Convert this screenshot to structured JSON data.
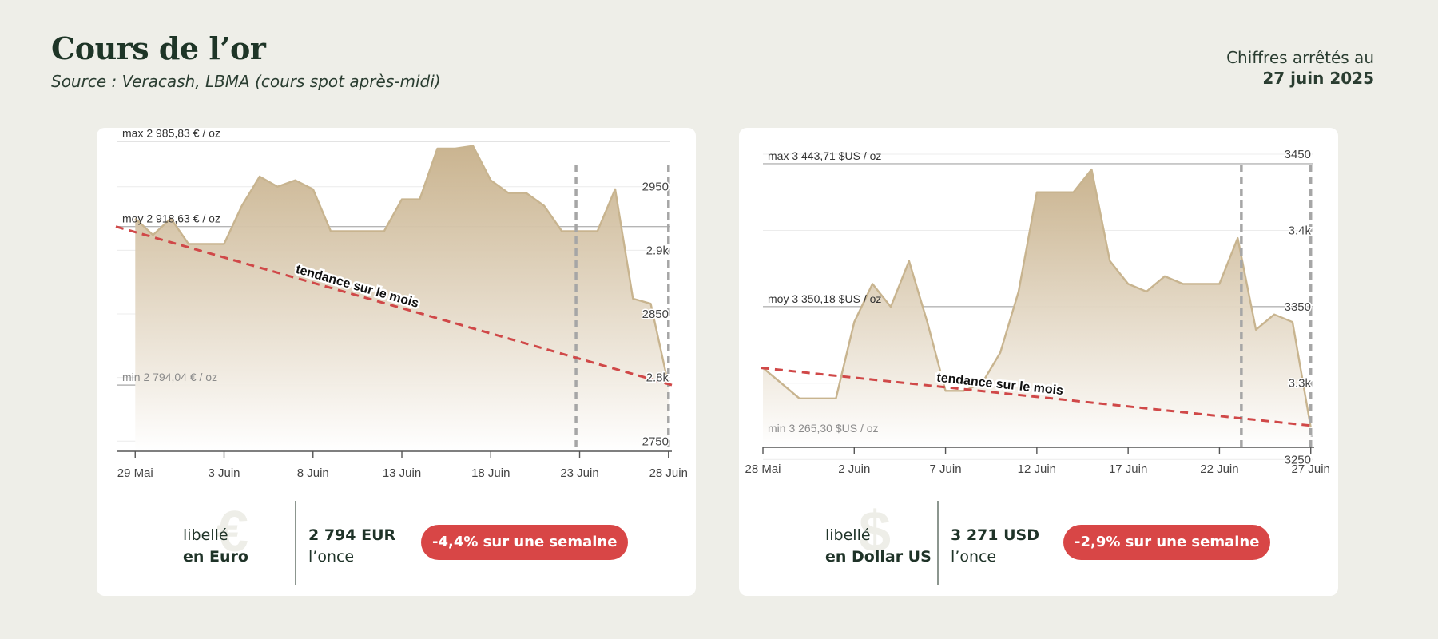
{
  "header": {
    "title": "Cours de l’or",
    "subtitle": "Source : Veracash, LBMA (cours spot après-midi)",
    "date_line1": "Chiffres arrêtés au",
    "date_line2": "27 juin 2025"
  },
  "colors": {
    "background": "#eeeee8",
    "line": "#c8b48f",
    "fill_top": "#c7b08a",
    "trend": "#d04848",
    "badge": "#d84646",
    "text_dark": "#1f3328"
  },
  "chart_data": [
    {
      "type": "area",
      "currency_symbol": "€",
      "unit": "€ / oz",
      "x": [
        0,
        1,
        2,
        3,
        4,
        5,
        6,
        7,
        8,
        9,
        10,
        11,
        12,
        13,
        14,
        15,
        16,
        17,
        18,
        19,
        20,
        21,
        22,
        23,
        24,
        25,
        26,
        27,
        28,
        29,
        30
      ],
      "values": [
        2925,
        2912,
        2925,
        2905,
        2905,
        2905,
        2935,
        2958,
        2950,
        2955,
        2948,
        2915,
        2915,
        2915,
        2915,
        2940,
        2940,
        2980,
        2980,
        2982,
        2955,
        2945,
        2945,
        2935,
        2915,
        2915,
        2915,
        2948,
        2862,
        2858,
        2794
      ],
      "xlim": [
        -1,
        30.1
      ],
      "ylim": [
        2742,
        2990
      ],
      "xticks": [
        {
          "x": 0,
          "label": "29 Mai"
        },
        {
          "x": 5,
          "label": "3 Juin"
        },
        {
          "x": 10,
          "label": "8 Juin"
        },
        {
          "x": 15,
          "label": "13 Juin"
        },
        {
          "x": 20,
          "label": "18 Juin"
        },
        {
          "x": 25,
          "label": "23 Juin"
        },
        {
          "x": 30,
          "label": "28 Juin"
        }
      ],
      "yticks": [
        {
          "y": 2950,
          "label": "2950"
        },
        {
          "y": 2900,
          "label": "2.9k"
        },
        {
          "y": 2850,
          "label": "2850"
        },
        {
          "y": 2800,
          "label": "2.8k"
        },
        {
          "y": 2750,
          "label": "2750"
        }
      ],
      "max": {
        "value": 2985.83,
        "label": "max 2 985,83 € / oz"
      },
      "avg": {
        "value": 2918.63,
        "label": "moy 2 918,63 € / oz"
      },
      "min": {
        "value": 2794.04,
        "label": "min 2 794,04 € / oz"
      },
      "trend": {
        "start": 2918.63,
        "end": 2794.04,
        "label": "tendance sur le mois"
      },
      "week_markers": [
        24.8,
        30
      ]
    },
    {
      "type": "area",
      "currency_symbol": "$",
      "unit": "$US / oz",
      "x": [
        0,
        1,
        2,
        3,
        4,
        5,
        6,
        7,
        8,
        9,
        10,
        11,
        12,
        13,
        14,
        15,
        16,
        17,
        18,
        19,
        20,
        21,
        22,
        23,
        24,
        25,
        26,
        27,
        28,
        29,
        30
      ],
      "values": [
        3310,
        3300,
        3290,
        3290,
        3290,
        3340,
        3365,
        3350,
        3380,
        3340,
        3295,
        3295,
        3300,
        3320,
        3360,
        3425,
        3425,
        3425,
        3440,
        3380,
        3365,
        3360,
        3370,
        3365,
        3365,
        3365,
        3395,
        3335,
        3345,
        3340,
        3271
      ],
      "xlim": [
        0,
        30.1
      ],
      "ylim": [
        3258,
        3462
      ],
      "xticks": [
        {
          "x": 0,
          "label": "28 Mai"
        },
        {
          "x": 5,
          "label": "2 Juin"
        },
        {
          "x": 10,
          "label": "7 Juin"
        },
        {
          "x": 15,
          "label": "12 Juin"
        },
        {
          "x": 20,
          "label": "17 Juin"
        },
        {
          "x": 25,
          "label": "22 Juin"
        },
        {
          "x": 30,
          "label": "27 Juin"
        }
      ],
      "yticks": [
        {
          "y": 3450,
          "label": "3450"
        },
        {
          "y": 3400,
          "label": "3.4k"
        },
        {
          "y": 3350,
          "label": "3350"
        },
        {
          "y": 3300,
          "label": "3.3k"
        },
        {
          "y": 3250,
          "label": "3250"
        }
      ],
      "max": {
        "value": 3443.71,
        "label": "max 3 443,71 $US / oz"
      },
      "avg": {
        "value": 3350.18,
        "label": "moy 3 350,18 $US / oz"
      },
      "min": {
        "value": 3265.3,
        "label": "min 3 265,30 $US / oz"
      },
      "trend": {
        "start": 3310,
        "end": 3272,
        "label": "tendance sur le mois"
      },
      "week_markers": [
        26.2,
        30
      ]
    }
  ],
  "summaries": [
    {
      "libelle_line1": "libellé",
      "libelle_line2": "en Euro",
      "price_value": "2 794 EUR",
      "price_unit": "l’once",
      "badge": "-4,4% sur une semaine",
      "currency_symbol": "€"
    },
    {
      "libelle_line1": "libellé",
      "libelle_line2": "en Dollar US",
      "price_value": "3 271 USD",
      "price_unit": "l’once",
      "badge": "-2,9% sur une semaine",
      "currency_symbol": "$"
    }
  ]
}
